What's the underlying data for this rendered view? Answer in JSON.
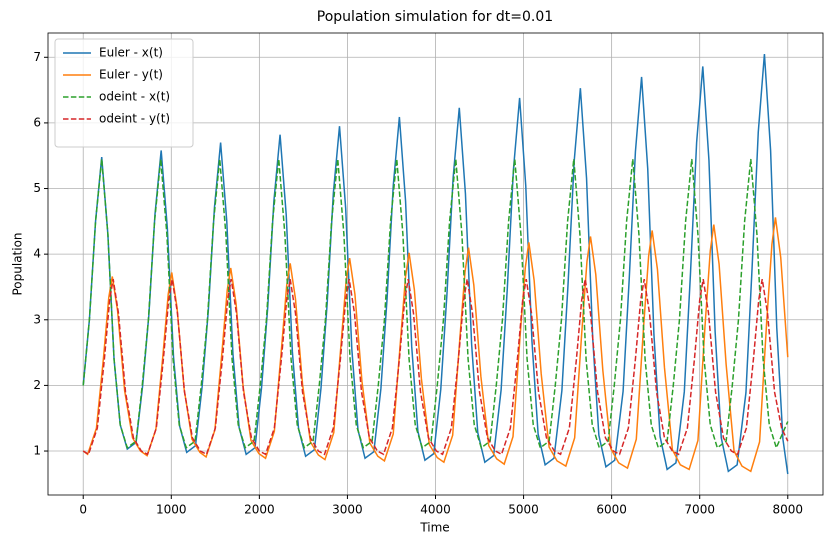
{
  "chart_data": {
    "type": "line",
    "title": "Population simulation for dt=0.01",
    "x_label": "Time",
    "y_label": "Population",
    "xlim": [
      -400,
      8400
    ],
    "ylim": [
      0.33,
      7.37
    ],
    "xticks": [
      0,
      1000,
      2000,
      3000,
      4000,
      5000,
      6000,
      7000,
      8000
    ],
    "yticks": [
      1,
      2,
      3,
      4,
      5,
      6,
      7
    ],
    "grid": true,
    "legend": "upper-left",
    "series": [
      {
        "name": "Euler - x(t)",
        "color": "#1f77b4",
        "linestyle": "solid",
        "x": [
          0,
          70,
          140,
          210,
          280,
          350,
          420,
          500,
          600,
          675,
          745,
          815,
          885,
          955,
          1025,
          1095,
          1175,
          1275,
          1350,
          1420,
          1490,
          1560,
          1630,
          1700,
          1770,
          1850,
          1950,
          2025,
          2095,
          2165,
          2235,
          2305,
          2375,
          2445,
          2525,
          2625,
          2700,
          2770,
          2840,
          2910,
          2980,
          3050,
          3120,
          3200,
          3300,
          3380,
          3450,
          3520,
          3590,
          3660,
          3730,
          3800,
          3880,
          3980,
          4060,
          4130,
          4200,
          4270,
          4340,
          4410,
          4480,
          4560,
          4660,
          4745,
          4815,
          4885,
          4955,
          5025,
          5095,
          5165,
          5245,
          5345,
          5435,
          5505,
          5575,
          5645,
          5715,
          5785,
          5855,
          5935,
          6035,
          6130,
          6200,
          6270,
          6340,
          6410,
          6480,
          6550,
          6630,
          6730,
          6825,
          6895,
          6965,
          7035,
          7105,
          7175,
          7245,
          7325,
          7425,
          7525,
          7595,
          7665,
          7735,
          7805,
          7875,
          7945,
          8000
        ],
        "values": [
          2.0,
          3.0,
          4.5,
          5.48,
          4.3,
          2.4,
          1.4,
          1.03,
          1.13,
          2.0,
          3.07,
          4.61,
          5.58,
          4.4,
          2.44,
          1.38,
          0.98,
          1.08,
          1.98,
          3.13,
          4.71,
          5.7,
          4.5,
          2.48,
          1.36,
          0.95,
          1.05,
          1.97,
          3.19,
          4.81,
          5.82,
          4.6,
          2.51,
          1.34,
          0.92,
          1.02,
          1.96,
          3.25,
          4.93,
          5.95,
          4.7,
          2.55,
          1.32,
          0.89,
          0.99,
          1.95,
          3.32,
          5.04,
          6.09,
          4.81,
          2.59,
          1.3,
          0.86,
          0.96,
          1.94,
          3.39,
          5.16,
          6.23,
          4.92,
          2.63,
          1.28,
          0.83,
          0.93,
          1.93,
          3.47,
          5.29,
          6.38,
          5.04,
          2.68,
          1.26,
          0.79,
          0.89,
          1.92,
          3.54,
          5.42,
          6.53,
          5.16,
          2.72,
          1.24,
          0.76,
          0.86,
          1.91,
          3.63,
          5.56,
          6.7,
          5.3,
          2.78,
          1.22,
          0.72,
          0.82,
          1.9,
          3.7,
          5.7,
          6.86,
          5.43,
          2.82,
          1.2,
          0.69,
          0.79,
          1.89,
          3.8,
          5.86,
          7.05,
          5.58,
          2.88,
          1.18,
          0.65
        ]
      },
      {
        "name": "Euler - y(t)",
        "color": "#ff7f0e",
        "linestyle": "solid",
        "x": [
          0,
          50,
          150,
          230,
          290,
          330,
          390,
          470,
          560,
          650,
          725,
          825,
          905,
          965,
          1005,
          1065,
          1145,
          1235,
          1325,
          1395,
          1495,
          1575,
          1635,
          1675,
          1735,
          1815,
          1905,
          1995,
          2070,
          2170,
          2250,
          2310,
          2350,
          2410,
          2490,
          2580,
          2670,
          2745,
          2845,
          2925,
          2985,
          3025,
          3085,
          3165,
          3255,
          3345,
          3420,
          3520,
          3600,
          3660,
          3700,
          3760,
          3840,
          3930,
          4020,
          4095,
          4195,
          4275,
          4335,
          4375,
          4435,
          4515,
          4605,
          4695,
          4780,
          4880,
          4960,
          5020,
          5060,
          5120,
          5200,
          5290,
          5380,
          5480,
          5580,
          5660,
          5720,
          5760,
          5820,
          5900,
          5990,
          6080,
          6180,
          6280,
          6360,
          6420,
          6460,
          6520,
          6600,
          6690,
          6780,
          6880,
          6980,
          7060,
          7120,
          7160,
          7220,
          7300,
          7390,
          7480,
          7580,
          7680,
          7760,
          7820,
          7860,
          7920,
          8000
        ],
        "values": [
          1.0,
          0.95,
          1.35,
          2.42,
          3.34,
          3.66,
          3.14,
          1.92,
          1.2,
          1.0,
          0.93,
          1.33,
          2.46,
          3.39,
          3.72,
          3.19,
          1.95,
          1.18,
          0.98,
          0.91,
          1.32,
          2.5,
          3.45,
          3.79,
          3.25,
          1.99,
          1.16,
          0.96,
          0.89,
          1.3,
          2.54,
          3.52,
          3.86,
          3.32,
          2.02,
          1.14,
          0.94,
          0.87,
          1.28,
          2.59,
          3.59,
          3.94,
          3.39,
          2.06,
          1.12,
          0.92,
          0.85,
          1.26,
          2.64,
          3.66,
          4.02,
          3.46,
          2.1,
          1.1,
          0.9,
          0.83,
          1.24,
          2.69,
          3.73,
          4.1,
          3.53,
          2.14,
          1.08,
          0.88,
          0.8,
          1.22,
          2.74,
          3.8,
          4.18,
          3.6,
          2.18,
          1.06,
          0.85,
          0.77,
          1.2,
          2.79,
          3.89,
          4.27,
          3.69,
          2.23,
          1.04,
          0.82,
          0.74,
          1.18,
          2.84,
          3.97,
          4.36,
          3.77,
          2.27,
          1.02,
          0.79,
          0.72,
          1.16,
          2.9,
          4.05,
          4.45,
          3.85,
          2.32,
          1.0,
          0.77,
          0.69,
          1.14,
          2.96,
          4.15,
          4.56,
          3.95,
          2.43
        ]
      },
      {
        "name": "odeint - x(t)",
        "color": "#2ca02c",
        "linestyle": "dashed",
        "x": [
          0,
          70,
          140,
          210,
          280,
          350,
          420,
          500,
          600,
          670,
          740,
          810,
          880,
          950,
          1020,
          1090,
          1170,
          1270,
          1340,
          1410,
          1480,
          1550,
          1620,
          1690,
          1760,
          1840,
          1940,
          2010,
          2080,
          2150,
          2220,
          2290,
          2360,
          2430,
          2510,
          2610,
          2680,
          2750,
          2820,
          2890,
          2960,
          3030,
          3100,
          3180,
          3280,
          3350,
          3420,
          3490,
          3560,
          3630,
          3700,
          3770,
          3850,
          3950,
          4020,
          4090,
          4160,
          4230,
          4300,
          4370,
          4440,
          4520,
          4620,
          4690,
          4760,
          4830,
          4900,
          4970,
          5040,
          5110,
          5190,
          5290,
          5360,
          5430,
          5500,
          5570,
          5640,
          5710,
          5780,
          5860,
          5960,
          6030,
          6100,
          6170,
          6240,
          6310,
          6380,
          6450,
          6530,
          6630,
          6700,
          6770,
          6840,
          6910,
          6980,
          7050,
          7120,
          7200,
          7300,
          7370,
          7440,
          7510,
          7580,
          7650,
          7720,
          7790,
          7870,
          8000
        ],
        "values": [
          2.0,
          3.0,
          4.5,
          5.45,
          4.3,
          2.4,
          1.4,
          1.05,
          1.15,
          2.0,
          3.0,
          4.5,
          5.45,
          4.3,
          2.4,
          1.4,
          1.05,
          1.15,
          2.0,
          3.0,
          4.5,
          5.45,
          4.3,
          2.4,
          1.4,
          1.05,
          1.15,
          2.0,
          3.0,
          4.5,
          5.45,
          4.3,
          2.4,
          1.4,
          1.05,
          1.15,
          2.0,
          3.0,
          4.5,
          5.45,
          4.3,
          2.4,
          1.4,
          1.05,
          1.15,
          2.0,
          3.0,
          4.5,
          5.45,
          4.3,
          2.4,
          1.4,
          1.05,
          1.15,
          2.0,
          3.0,
          4.5,
          5.45,
          4.3,
          2.4,
          1.4,
          1.05,
          1.15,
          2.0,
          3.0,
          4.5,
          5.45,
          4.3,
          2.4,
          1.4,
          1.05,
          1.15,
          2.0,
          3.0,
          4.5,
          5.45,
          4.3,
          2.4,
          1.4,
          1.05,
          1.15,
          2.0,
          3.0,
          4.5,
          5.45,
          4.3,
          2.4,
          1.4,
          1.05,
          1.15,
          2.0,
          3.0,
          4.5,
          5.45,
          4.3,
          2.4,
          1.4,
          1.05,
          1.15,
          2.0,
          3.0,
          4.5,
          5.45,
          4.3,
          2.4,
          1.4,
          1.05,
          1.45
        ]
      },
      {
        "name": "odeint - y(t)",
        "color": "#d62728",
        "linestyle": "dashed",
        "x": [
          0,
          60,
          160,
          240,
          300,
          340,
          400,
          480,
          570,
          660,
          730,
          830,
          910,
          970,
          1010,
          1070,
          1150,
          1240,
          1330,
          1400,
          1500,
          1580,
          1640,
          1680,
          1740,
          1820,
          1910,
          2000,
          2070,
          2170,
          2250,
          2310,
          2350,
          2410,
          2490,
          2580,
          2670,
          2740,
          2840,
          2920,
          2980,
          3020,
          3080,
          3160,
          3250,
          3340,
          3410,
          3510,
          3590,
          3650,
          3690,
          3750,
          3830,
          3920,
          4010,
          4080,
          4180,
          4260,
          4320,
          4360,
          4420,
          4500,
          4590,
          4680,
          4750,
          4850,
          4930,
          4990,
          5030,
          5090,
          5170,
          5260,
          5350,
          5420,
          5520,
          5600,
          5660,
          5700,
          5760,
          5840,
          5930,
          6020,
          6090,
          6190,
          6270,
          6330,
          6370,
          6430,
          6510,
          6600,
          6690,
          6760,
          6860,
          6940,
          7000,
          7040,
          7100,
          7180,
          7270,
          7360,
          7430,
          7530,
          7610,
          7670,
          7710,
          7770,
          7850,
          7930,
          8000
        ],
        "values": [
          1.0,
          0.95,
          1.35,
          2.4,
          3.3,
          3.62,
          3.1,
          1.9,
          1.2,
          1.0,
          0.95,
          1.35,
          2.4,
          3.3,
          3.62,
          3.1,
          1.9,
          1.2,
          1.0,
          0.95,
          1.35,
          2.4,
          3.3,
          3.62,
          3.1,
          1.9,
          1.2,
          1.0,
          0.95,
          1.35,
          2.4,
          3.3,
          3.62,
          3.1,
          1.9,
          1.2,
          1.0,
          0.95,
          1.35,
          2.4,
          3.3,
          3.62,
          3.1,
          1.9,
          1.2,
          1.0,
          0.95,
          1.35,
          2.4,
          3.3,
          3.62,
          3.1,
          1.9,
          1.2,
          1.0,
          0.95,
          1.35,
          2.4,
          3.3,
          3.62,
          3.1,
          1.9,
          1.2,
          1.0,
          0.95,
          1.35,
          2.4,
          3.3,
          3.62,
          3.1,
          1.9,
          1.2,
          1.0,
          0.95,
          1.35,
          2.4,
          3.3,
          3.62,
          3.1,
          1.9,
          1.2,
          1.0,
          0.95,
          1.35,
          2.4,
          3.3,
          3.62,
          3.1,
          1.9,
          1.2,
          1.0,
          0.95,
          1.35,
          2.4,
          3.3,
          3.62,
          3.1,
          1.9,
          1.2,
          1.0,
          0.95,
          1.35,
          2.4,
          3.3,
          3.62,
          3.1,
          1.9,
          1.35,
          1.15
        ]
      }
    ]
  }
}
